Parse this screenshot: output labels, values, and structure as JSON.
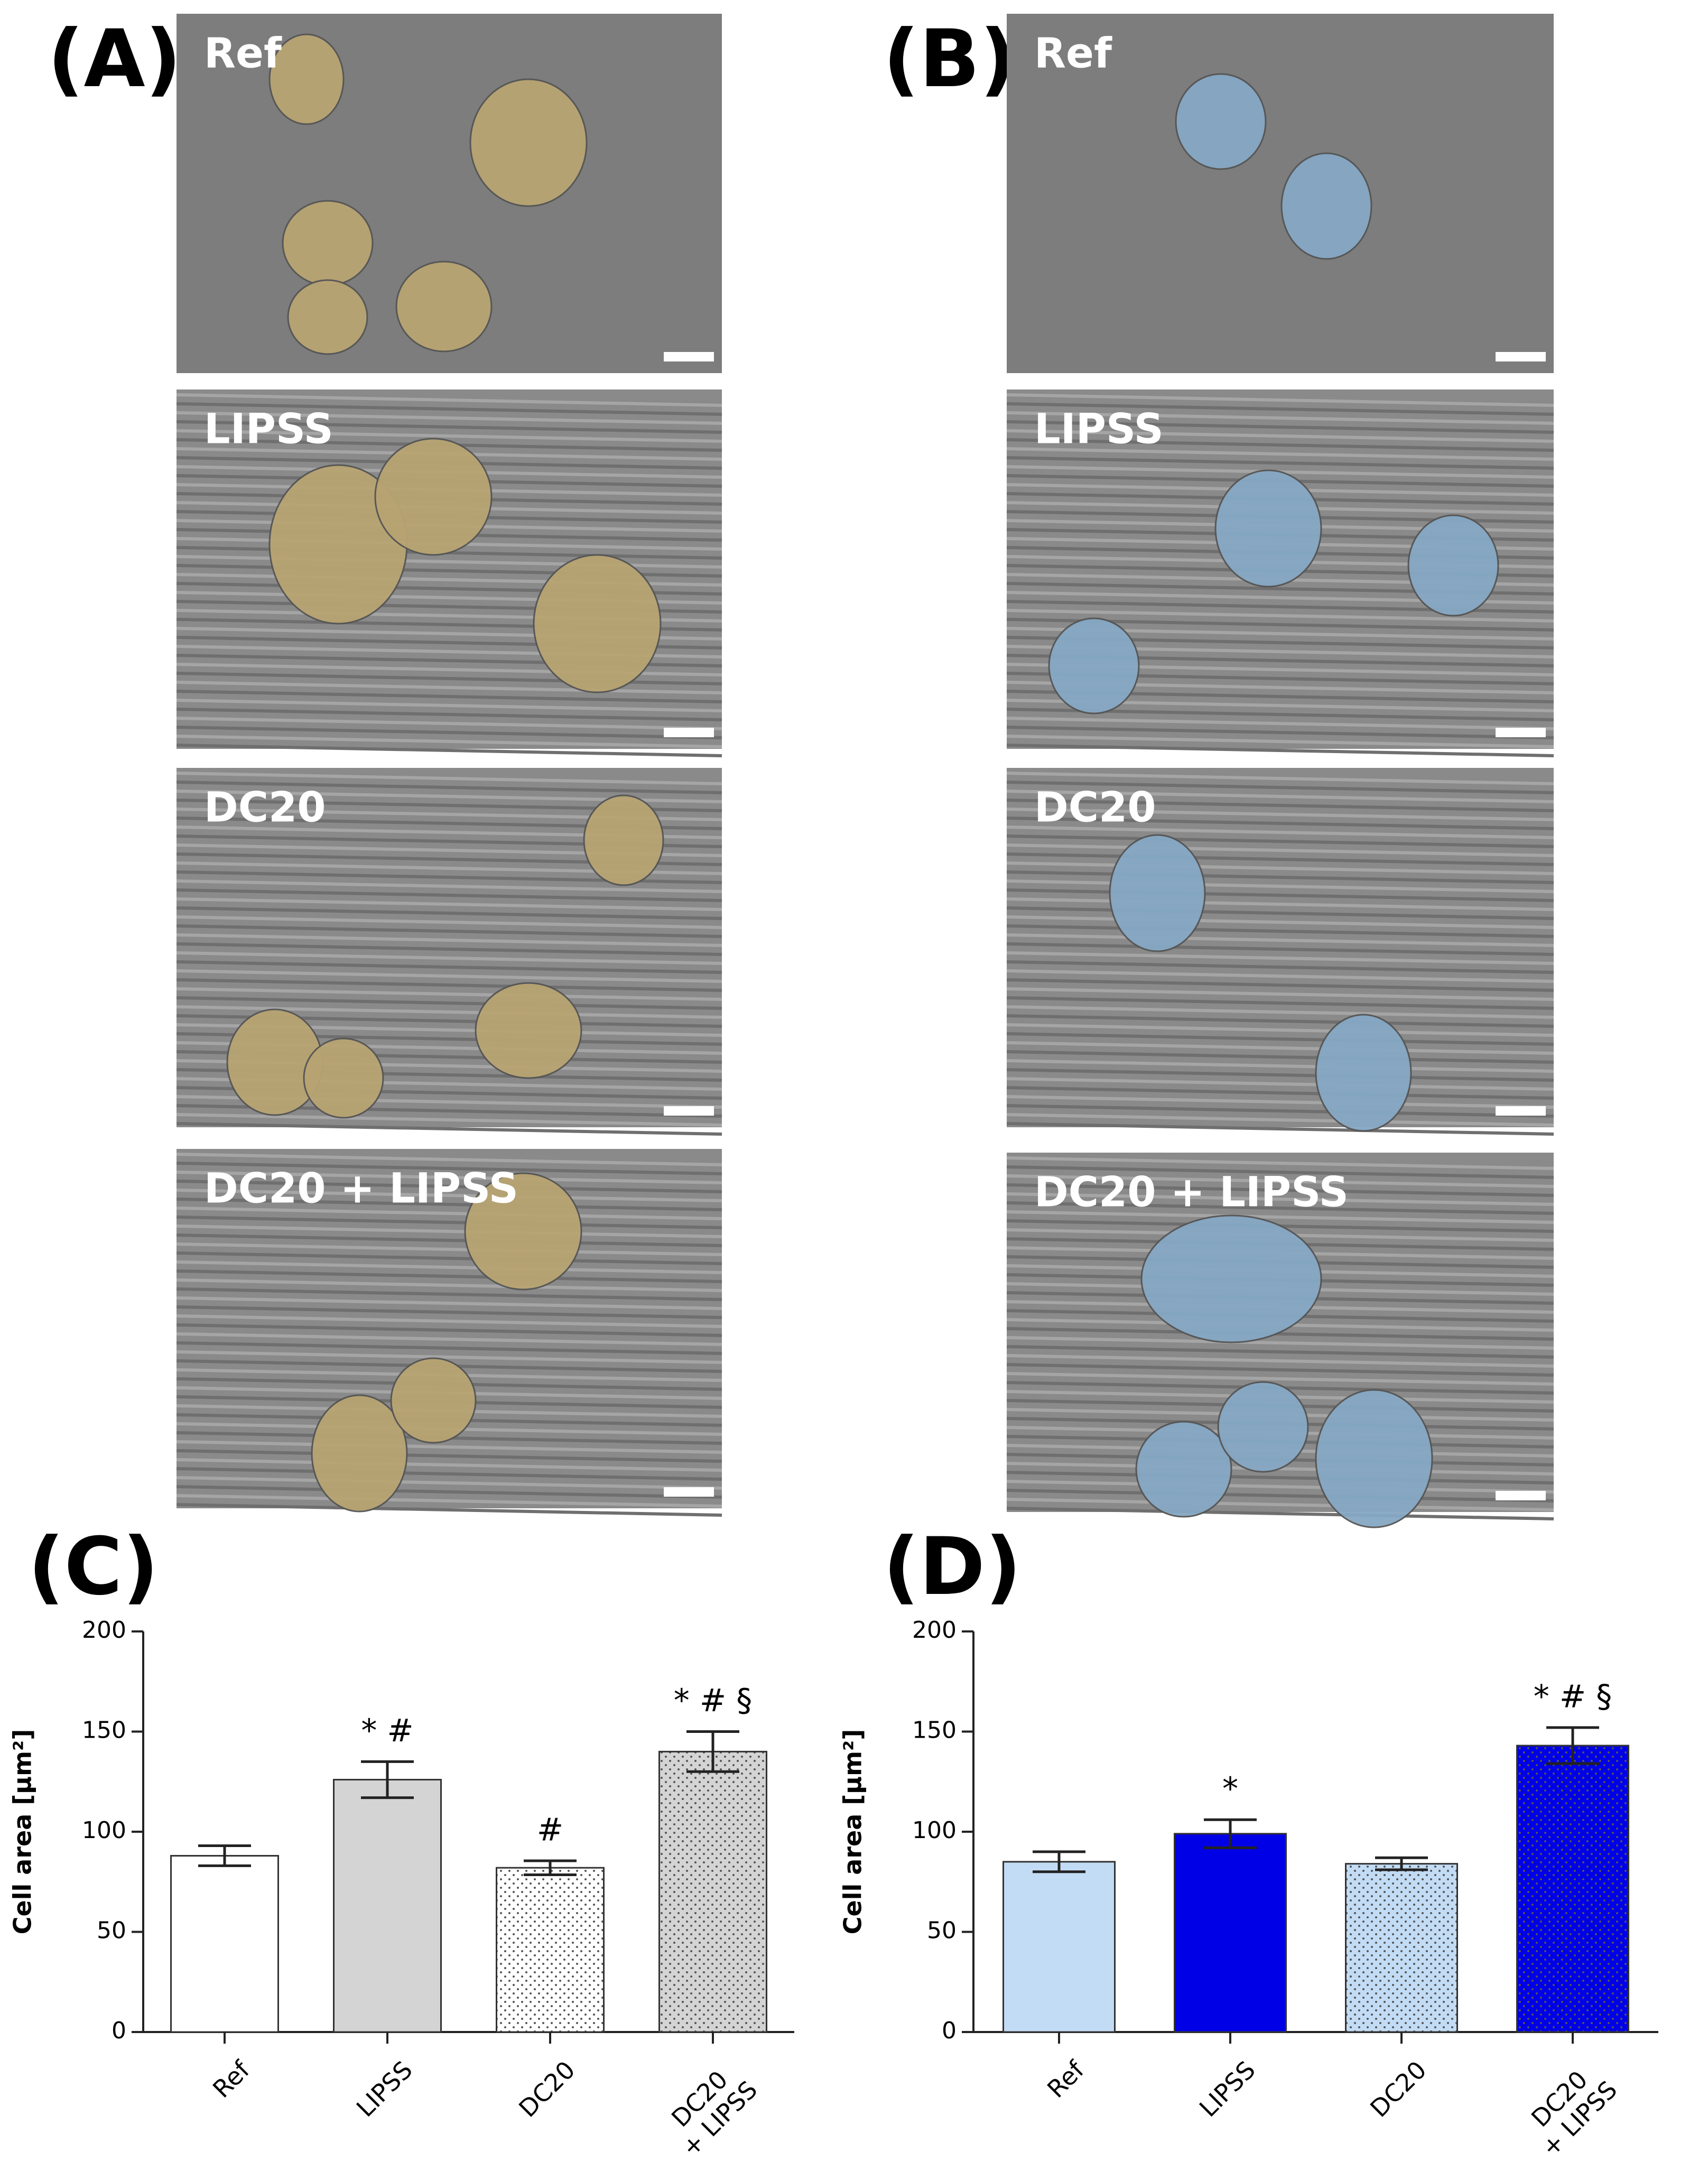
{
  "panels": [
    {
      "label": "(A)",
      "images": [
        "Ref",
        "LIPSS",
        "DC20",
        "DC20 + LIPSS"
      ],
      "cell_color": "#b8a472"
    },
    {
      "label": "(B)",
      "images": [
        "Ref",
        "LIPSS",
        "DC20",
        "DC20 + LIPSS"
      ],
      "cell_color": "#86a8c4"
    }
  ],
  "chart_data": [
    {
      "type": "bar",
      "label": "(C)",
      "y_label": "Cell area [µm²]",
      "categories": [
        "Ref",
        "LIPSS",
        "DC20",
        "DC20\n+ LIPSS"
      ],
      "values": [
        88,
        126,
        82,
        140
      ],
      "errors": [
        5,
        9,
        3.5,
        10
      ],
      "annotations": [
        null,
        "* #",
        "#",
        "* # §"
      ],
      "colors": [
        "#ffffff",
        "#d4d4d4",
        "#ffffff",
        "#d4d4d4"
      ],
      "patterns": [
        "none",
        "none",
        "dots",
        "dots"
      ],
      "ylim": [
        0,
        200
      ],
      "yticks": [
        0,
        50,
        100,
        150,
        200
      ]
    },
    {
      "type": "bar",
      "label": "(D)",
      "y_label": "Cell area [µm²]",
      "categories": [
        "Ref",
        "LIPSS",
        "DC20",
        "DC20\n+ LIPSS"
      ],
      "values": [
        85,
        99,
        84,
        143
      ],
      "errors": [
        5,
        7,
        3,
        9
      ],
      "annotations": [
        null,
        "*",
        null,
        "* # §"
      ],
      "colors": [
        "#c3dcf5",
        "#0000e6",
        "#c3dcf5",
        "#0000e6"
      ],
      "patterns": [
        "none",
        "none",
        "dots",
        "dots"
      ],
      "ylim": [
        0,
        200
      ],
      "yticks": [
        0,
        50,
        100,
        150,
        200
      ]
    }
  ]
}
